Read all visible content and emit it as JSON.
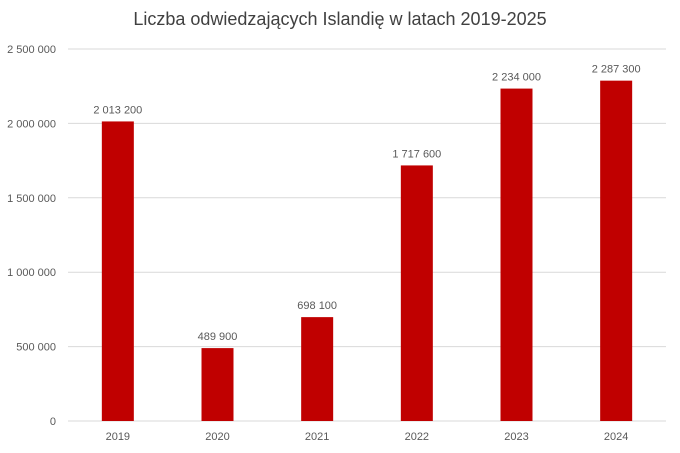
{
  "chart_data": {
    "type": "bar",
    "title": "Liczba odwiedzających Islandię w latach 2019-2025",
    "xlabel": "",
    "ylabel": "",
    "categories": [
      "2019",
      "2020",
      "2021",
      "2022",
      "2023",
      "2024"
    ],
    "values": [
      2013200,
      489900,
      698100,
      1717600,
      2234000,
      2287300
    ],
    "data_labels": [
      "2 013 200",
      "489 900",
      "698 100",
      "1 717 600",
      "2 234 000",
      "2 287 300"
    ],
    "ylim": [
      0,
      2500000
    ],
    "y_ticks": [
      0,
      500000,
      1000000,
      1500000,
      2000000,
      2500000
    ],
    "y_tick_labels": [
      "0",
      "500 000",
      "1 000 000",
      "1 500 000",
      "2 000 000",
      "2 500 000"
    ],
    "grid": true,
    "legend": "none",
    "bar_color": "#c00000",
    "grid_color": "#d9d9d9",
    "text_color": "#595959"
  }
}
